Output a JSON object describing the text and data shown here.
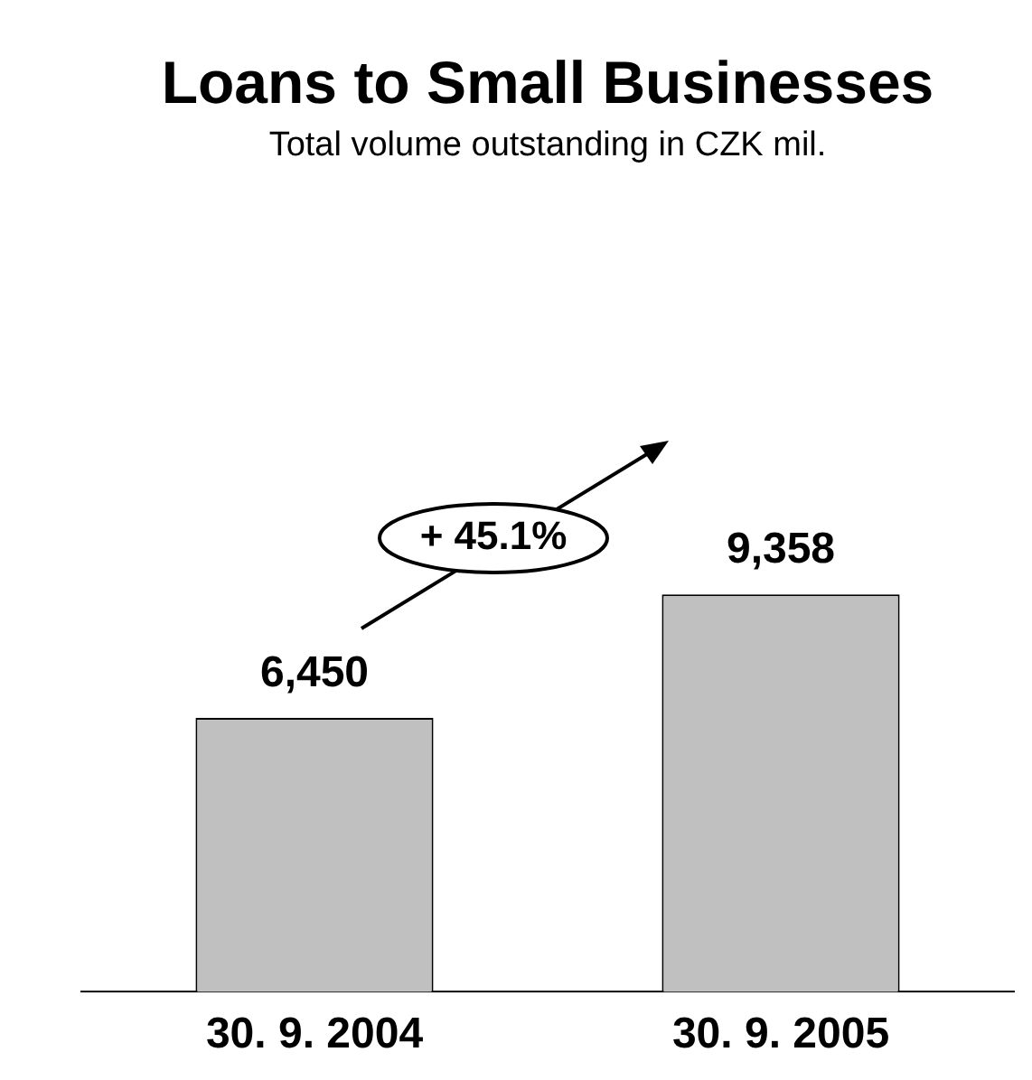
{
  "chart_data": {
    "type": "bar",
    "title": "Loans to Small Businesses",
    "subtitle": "Total volume outstanding in CZK mil.",
    "categories": [
      "30. 9. 2004",
      "30. 9. 2005"
    ],
    "values": [
      6450,
      9358
    ],
    "value_labels": [
      "6,450",
      "9,358"
    ],
    "color": "#c0c0c0",
    "annotations": [
      "+ 45.1%"
    ],
    "grid": false,
    "legend": false
  }
}
